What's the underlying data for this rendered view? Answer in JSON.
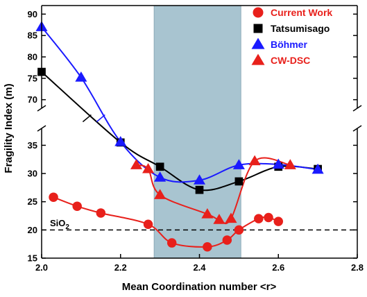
{
  "chart_data": {
    "type": "scatter",
    "xlabel": "Mean Coordination number <r>",
    "ylabel": "Fragility Index (m)",
    "xlim": [
      2.0,
      2.8
    ],
    "xticks": [
      "2.0",
      "2.2",
      "2.4",
      "2.6",
      "2.8"
    ],
    "y_axis_break": true,
    "ylim_lower": [
      15,
      38
    ],
    "ylim_upper": [
      68,
      92
    ],
    "yticks_lower": [
      "15",
      "20",
      "25",
      "30",
      "35"
    ],
    "yticks_upper": [
      "70",
      "75",
      "80",
      "85",
      "90"
    ],
    "shaded_region": {
      "x_from": 2.285,
      "x_to": 2.505,
      "color": "#a8c4d0"
    },
    "reference_line": {
      "label": "SiO2",
      "label_main": "SiO",
      "label_sub": "2",
      "y": 20,
      "style": "dashed",
      "color": "#000000"
    },
    "legend_position": "top-right",
    "series": [
      {
        "name": "Current Work",
        "marker": "circle",
        "color": "#e8201b",
        "x": [
          2.03,
          2.09,
          2.15,
          2.27,
          2.33,
          2.42,
          2.47,
          2.5,
          2.55,
          2.575,
          2.6
        ],
        "y": [
          25.8,
          24.2,
          23.0,
          21.0,
          17.7,
          17.0,
          18.2,
          20.0,
          22.0,
          22.2,
          21.5
        ],
        "fit_curve": true
      },
      {
        "name": "Tatsumisago",
        "marker": "square",
        "color": "#000000",
        "x": [
          2.0,
          2.2,
          2.3,
          2.4,
          2.5,
          2.6,
          2.7
        ],
        "y": [
          76.5,
          35.5,
          31.2,
          27.1,
          28.6,
          31.2,
          30.8
        ],
        "fit_curve": true
      },
      {
        "name": "Böhmer",
        "marker": "triangle",
        "color": "#1a1aff",
        "x": [
          2.0,
          2.1,
          2.2,
          2.3,
          2.4,
          2.5,
          2.6,
          2.7
        ],
        "y": [
          87.0,
          75.2,
          35.6,
          29.3,
          28.8,
          31.5,
          31.6,
          30.7
        ],
        "fit_curve": true
      },
      {
        "name": "CW-DSC",
        "marker": "triangle",
        "color": "#e8201b",
        "x": [
          2.24,
          2.27,
          2.3,
          2.42,
          2.45,
          2.48,
          2.54,
          2.63
        ],
        "y": [
          31.5,
          30.8,
          26.2,
          22.8,
          21.8,
          22.0,
          32.2,
          31.5
        ],
        "fit_curve": true
      }
    ]
  }
}
